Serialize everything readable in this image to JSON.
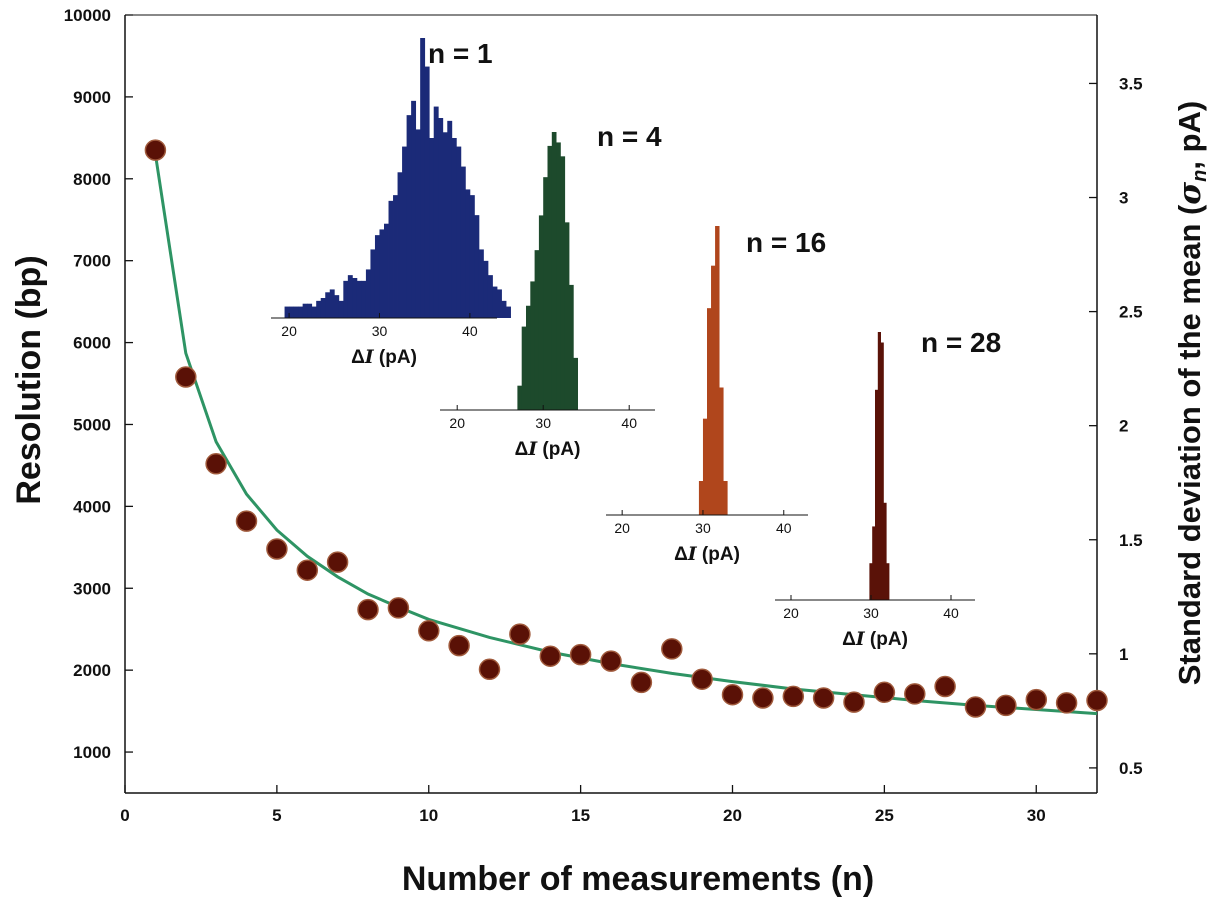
{
  "chart_data": {
    "type": "scatter",
    "xlabel": "Number of measurements (n)",
    "ylabel": "Resolution (bp)",
    "y2label_prefix": "Standard deviation of the mean (",
    "y2label_symbol": "σ",
    "y2label_subscript": "n",
    "y2label_suffix": ", pA)",
    "xlim": [
      0,
      32
    ],
    "ylim": [
      500,
      10000
    ],
    "y2lim": [
      0.39,
      3.8
    ],
    "xticks": [
      "0",
      "5",
      "10",
      "15",
      "20",
      "25",
      "30"
    ],
    "yticks": [
      "1000",
      "2000",
      "3000",
      "4000",
      "5000",
      "6000",
      "7000",
      "8000",
      "9000",
      "10000"
    ],
    "y2ticks": [
      "0.5",
      "1",
      "1.5",
      "2",
      "2.5",
      "3",
      "3.5"
    ],
    "grid": false,
    "colors": {
      "points_fill": "#5a1106",
      "points_edge": "#a05a3c",
      "fit_line": "#2e9464",
      "axis": "#111111"
    },
    "series": [
      {
        "kind": "scatter",
        "x": [
          1,
          2,
          3,
          4,
          5,
          6,
          7,
          8,
          9,
          10,
          11,
          12,
          13,
          14,
          15,
          16,
          17,
          18,
          19,
          20,
          21,
          22,
          23,
          24,
          25,
          26,
          27,
          28,
          29,
          30,
          31,
          32
        ],
        "y": [
          8350,
          5580,
          4520,
          3820,
          3480,
          3220,
          3320,
          2740,
          2760,
          2480,
          2300,
          2010,
          2440,
          2170,
          2190,
          2110,
          1850,
          2260,
          1890,
          1700,
          1660,
          1680,
          1660,
          1610,
          1730,
          1710,
          1800,
          1550,
          1570,
          1640,
          1600,
          1630
        ]
      },
      {
        "kind": "line",
        "x": [
          1,
          2,
          3,
          4,
          5,
          6,
          7,
          8,
          9,
          10,
          12,
          14,
          16,
          18,
          20,
          22,
          24,
          26,
          28,
          30,
          32
        ],
        "y": [
          8300,
          5870,
          4790,
          4150,
          3710,
          3390,
          3140,
          2930,
          2770,
          2620,
          2400,
          2220,
          2080,
          1960,
          1860,
          1770,
          1700,
          1630,
          1570,
          1520,
          1470
        ]
      }
    ],
    "insets": [
      {
        "label": "n = 1",
        "xlabel_delta": "Δ",
        "xlabel_symbol": "I",
        "xlabel_unit": " (pA)",
        "xticks": [
          "20",
          "30",
          "40"
        ],
        "xlim": [
          18,
          43
        ],
        "color": "#1b2a78",
        "bin_start": 19.5,
        "bin_width": 0.5,
        "counts": [
          4,
          4,
          4,
          4,
          5,
          5,
          4,
          6,
          7,
          9,
          10,
          8,
          6,
          13,
          15,
          14,
          13,
          13,
          17,
          24,
          29,
          31,
          33,
          41,
          43,
          51,
          60,
          71,
          76,
          66,
          98,
          88,
          63,
          74,
          70,
          65,
          69,
          63,
          60,
          53,
          45,
          43,
          36,
          24,
          20,
          15,
          11,
          10,
          6,
          4
        ]
      },
      {
        "label": "n = 4",
        "xlabel_delta": "Δ",
        "xlabel_symbol": "I",
        "xlabel_unit": " (pA)",
        "xticks": [
          "20",
          "30",
          "40"
        ],
        "xlim": [
          18,
          43
        ],
        "color": "#1d4a2c",
        "bin_start": 27,
        "bin_width": 0.5,
        "counts": [
          7,
          24,
          30,
          37,
          46,
          56,
          67,
          76,
          80,
          77,
          73,
          54,
          36,
          15
        ]
      },
      {
        "label": "n = 16",
        "xlabel_delta": "Δ",
        "xlabel_symbol": "I",
        "xlabel_unit": " (pA)",
        "xticks": [
          "20",
          "30",
          "40"
        ],
        "xlim": [
          18,
          43
        ],
        "color": "#b0461c",
        "bin_start": 29.5,
        "bin_width": 0.5,
        "counts": [
          12,
          34,
          73,
          88,
          102,
          45,
          12
        ]
      },
      {
        "label": "n = 28",
        "xlabel_delta": "Δ",
        "xlabel_symbol": "I",
        "xlabel_unit": " (pA)",
        "xticks": [
          "20",
          "30",
          "40"
        ],
        "xlim": [
          18,
          43
        ],
        "color": "#5a1208",
        "bin_start": 29.8,
        "bin_width": 0.35,
        "counts": [
          14,
          28,
          80,
          102,
          98,
          37,
          14
        ]
      }
    ]
  }
}
